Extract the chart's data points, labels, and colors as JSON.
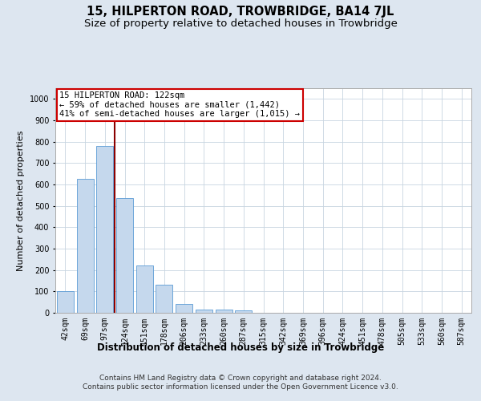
{
  "title": "15, HILPERTON ROAD, TROWBRIDGE, BA14 7JL",
  "subtitle": "Size of property relative to detached houses in Trowbridge",
  "xlabel": "Distribution of detached houses by size in Trowbridge",
  "ylabel": "Number of detached properties",
  "categories": [
    "42sqm",
    "69sqm",
    "97sqm",
    "124sqm",
    "151sqm",
    "178sqm",
    "206sqm",
    "233sqm",
    "260sqm",
    "287sqm",
    "315sqm",
    "342sqm",
    "369sqm",
    "396sqm",
    "424sqm",
    "451sqm",
    "478sqm",
    "505sqm",
    "533sqm",
    "560sqm",
    "587sqm"
  ],
  "values": [
    100,
    625,
    780,
    535,
    220,
    130,
    40,
    15,
    15,
    10,
    0,
    0,
    0,
    0,
    0,
    0,
    0,
    0,
    0,
    0,
    0
  ],
  "bar_color": "#c5d8ed",
  "bar_edge_color": "#5b9bd5",
  "property_line_color": "#8b0000",
  "annotation_line1": "15 HILPERTON ROAD: 122sqm",
  "annotation_line2": "← 59% of detached houses are smaller (1,442)",
  "annotation_line3": "41% of semi-detached houses are larger (1,015) →",
  "annotation_box_color": "#ffffff",
  "annotation_box_edge_color": "#cc0000",
  "ylim": [
    0,
    1050
  ],
  "yticks": [
    0,
    100,
    200,
    300,
    400,
    500,
    600,
    700,
    800,
    900,
    1000
  ],
  "bg_color": "#dde6f0",
  "plot_bg_color": "#ffffff",
  "footer": "Contains HM Land Registry data © Crown copyright and database right 2024.\nContains public sector information licensed under the Open Government Licence v3.0.",
  "title_fontsize": 10.5,
  "subtitle_fontsize": 9.5,
  "xlabel_fontsize": 8.5,
  "ylabel_fontsize": 8,
  "tick_fontsize": 7,
  "annotation_fontsize": 7.5,
  "footer_fontsize": 6.5
}
